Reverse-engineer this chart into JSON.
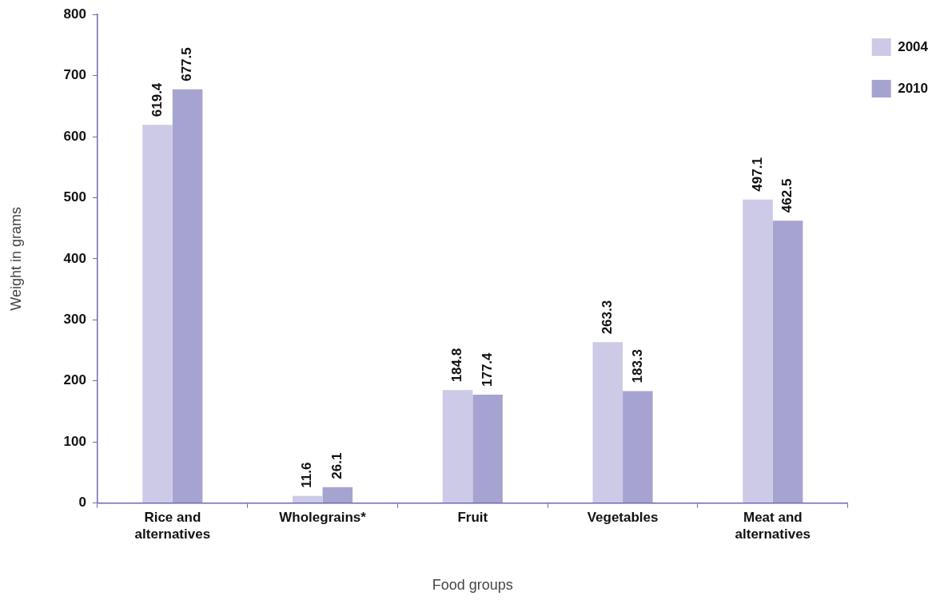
{
  "chart_data": {
    "type": "bar",
    "xlabel": "Food groups",
    "ylabel": "Weight in grams",
    "categories": [
      "Rice and alternatives",
      "Wholegrains*",
      "Fruit",
      "Vegetables",
      "Meat and alternatives"
    ],
    "series": [
      {
        "name": "2004",
        "color": "#cccae6",
        "values": [
          619.4,
          11.6,
          184.8,
          263.3,
          497.1
        ]
      },
      {
        "name": "2010",
        "color": "#a7a3d1",
        "values": [
          677.5,
          26.1,
          177.4,
          183.3,
          462.5
        ]
      }
    ],
    "ylim": [
      0,
      800
    ],
    "yticks": [
      0,
      100,
      200,
      300,
      400,
      500,
      600,
      700,
      800
    ],
    "grid": false,
    "legend": "top right",
    "data_labels": true
  }
}
